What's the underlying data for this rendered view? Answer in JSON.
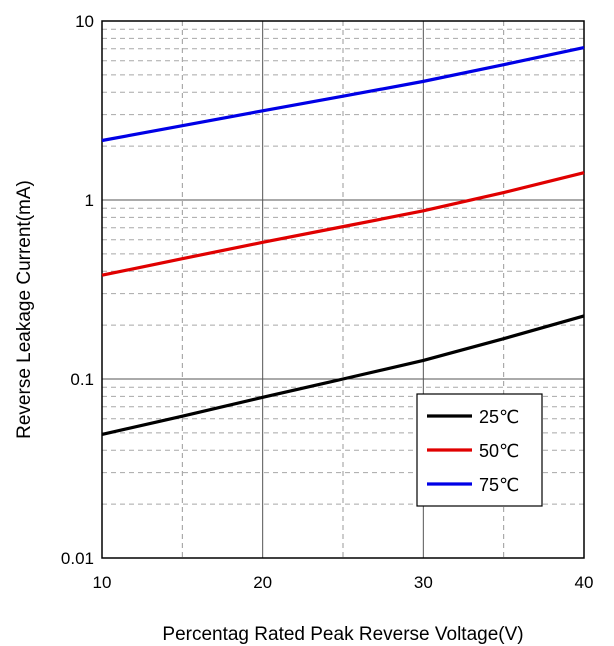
{
  "chart_data": {
    "type": "line",
    "title": "",
    "xlabel": "Percentag Rated Peak Reverse Voltage(V)",
    "ylabel": "Reverse Leakage Current(mA)",
    "xlim": [
      10,
      40
    ],
    "ylim": [
      0.01,
      10
    ],
    "y_scale": "log",
    "x_ticks": [
      "10",
      "20",
      "30",
      "40"
    ],
    "y_ticks": [
      "0.01",
      "0.1",
      "1",
      "10"
    ],
    "grid": true,
    "legend_position": "bottom-right",
    "series": [
      {
        "name": "25℃",
        "color": "#000000",
        "x": [
          10,
          15,
          20,
          25,
          30,
          35,
          40
        ],
        "y": [
          0.049,
          0.062,
          0.079,
          0.1,
          0.127,
          0.168,
          0.225
        ]
      },
      {
        "name": "50℃",
        "color": "#e00000",
        "x": [
          10,
          15,
          20,
          25,
          30,
          35,
          40
        ],
        "y": [
          0.38,
          0.47,
          0.58,
          0.71,
          0.87,
          1.1,
          1.42
        ]
      },
      {
        "name": "75℃",
        "color": "#0000e6",
        "x": [
          10,
          15,
          20,
          25,
          30,
          35,
          40
        ],
        "y": [
          2.15,
          2.6,
          3.15,
          3.8,
          4.6,
          5.7,
          7.1
        ]
      }
    ]
  }
}
